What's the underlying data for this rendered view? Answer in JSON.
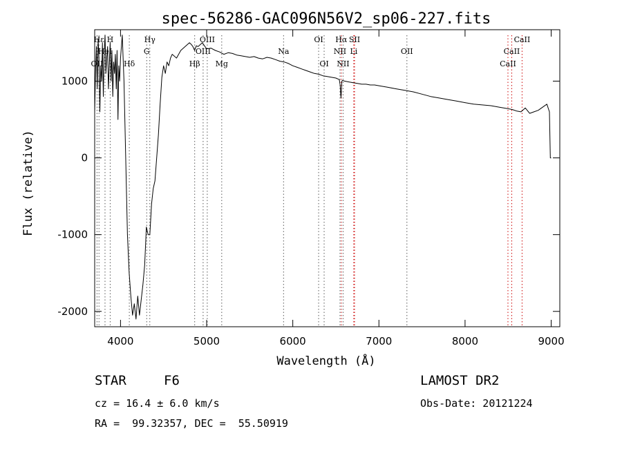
{
  "chart_data": {
    "type": "line",
    "title": "spec-56286-GAC096N56V2_sp06-227.fits",
    "xlabel": "Wavelength (Å)",
    "ylabel": "Flux (relative)",
    "xlim": [
      3700,
      9100
    ],
    "ylim": [
      -2200,
      1670
    ],
    "x_ticks": [
      4000,
      5000,
      6000,
      7000,
      8000,
      9000
    ],
    "y_ticks": [
      -2000,
      -1000,
      0,
      1000
    ],
    "line_color": "#000000",
    "marker_color_red": "#cc0000",
    "marker_color_black": "#555555",
    "series": [
      {
        "x": [
          3700,
          3710,
          3720,
          3730,
          3740,
          3750,
          3760,
          3770,
          3780,
          3790,
          3800,
          3810,
          3820,
          3830,
          3840,
          3850,
          3860,
          3870,
          3880,
          3890,
          3900,
          3910,
          3920,
          3930,
          3940,
          3950,
          3960,
          3970,
          3980,
          3990,
          4000,
          4020,
          4040,
          4060,
          4080,
          4100,
          4120,
          4140,
          4160,
          4180,
          4200,
          4220,
          4240,
          4260,
          4280,
          4300,
          4320,
          4340,
          4360,
          4380,
          4400,
          4420,
          4440,
          4460,
          4480,
          4500,
          4520,
          4540,
          4560,
          4580,
          4600,
          4650,
          4700,
          4750,
          4800,
          4820,
          4840,
          4860,
          4880,
          4900,
          4950,
          5000,
          5050,
          5100,
          5150,
          5200,
          5250,
          5300,
          5350,
          5400,
          5450,
          5500,
          5550,
          5600,
          5650,
          5700,
          5750,
          5800,
          5850,
          5900,
          5950,
          6000,
          6050,
          6100,
          6150,
          6200,
          6250,
          6300,
          6350,
          6400,
          6450,
          6500,
          6540,
          6550,
          6560,
          6565,
          6570,
          6580,
          6600,
          6650,
          6700,
          6750,
          6800,
          6850,
          6900,
          6950,
          7000,
          7100,
          7200,
          7300,
          7400,
          7500,
          7600,
          7700,
          7800,
          7900,
          8000,
          8100,
          8200,
          8300,
          8400,
          8500,
          8550,
          8600,
          8650,
          8700,
          8750,
          8800,
          8850,
          8900,
          8950,
          8980,
          8990,
          9000
        ],
        "y": [
          600,
          1100,
          1450,
          900,
          1550,
          1300,
          600,
          1200,
          1000,
          1500,
          800,
          1350,
          1600,
          1100,
          1300,
          1450,
          900,
          1200,
          1500,
          1000,
          1400,
          800,
          1250,
          1100,
          1350,
          900,
          1400,
          500,
          1200,
          1000,
          1300,
          1600,
          1000,
          0,
          -1000,
          -1500,
          -1800,
          -2050,
          -1900,
          -2100,
          -1800,
          -2050,
          -1850,
          -1650,
          -1400,
          -900,
          -1000,
          -1000,
          -600,
          -400,
          -300,
          0,
          300,
          700,
          1050,
          1200,
          1100,
          1250,
          1200,
          1300,
          1350,
          1300,
          1400,
          1450,
          1500,
          1480,
          1450,
          1400,
          1460,
          1450,
          1500,
          1420,
          1430,
          1400,
          1380,
          1350,
          1370,
          1360,
          1340,
          1330,
          1320,
          1310,
          1320,
          1300,
          1290,
          1310,
          1300,
          1280,
          1260,
          1250,
          1230,
          1200,
          1180,
          1160,
          1140,
          1120,
          1100,
          1090,
          1070,
          1060,
          1050,
          1040,
          1020,
          950,
          780,
          900,
          1000,
          1010,
          1000,
          990,
          980,
          970,
          960,
          960,
          950,
          950,
          940,
          920,
          900,
          880,
          860,
          830,
          800,
          780,
          760,
          740,
          720,
          700,
          690,
          680,
          660,
          640,
          630,
          610,
          600,
          650,
          580,
          600,
          620,
          660,
          700,
          600,
          0,
          0
        ]
      }
    ],
    "line_markers": [
      {
        "label": "OII",
        "x": 3727,
        "color": "black",
        "row": 3
      },
      {
        "label": "Hε",
        "x": 3750,
        "color": "black",
        "row": 1
      },
      {
        "label": "HeI",
        "x": 3820,
        "color": "black",
        "row": 2
      },
      {
        "label": "H",
        "x": 3880,
        "color": "black",
        "row": 1
      },
      {
        "label": "Hδ",
        "x": 4102,
        "color": "black",
        "row": 3
      },
      {
        "label": "Hγ",
        "x": 4340,
        "color": "black",
        "row": 1
      },
      {
        "label": "G",
        "x": 4304,
        "color": "black",
        "row": 2
      },
      {
        "label": "Hβ",
        "x": 4861,
        "color": "black",
        "row": 3
      },
      {
        "label": "OIII",
        "x": 5007,
        "color": "black",
        "row": 1
      },
      {
        "label": "OIII",
        "x": 4959,
        "color": "black",
        "row": 2
      },
      {
        "label": "Mg",
        "x": 5175,
        "color": "black",
        "row": 3
      },
      {
        "label": "Na",
        "x": 5893,
        "color": "black",
        "row": 2
      },
      {
        "label": "OI",
        "x": 6300,
        "color": "black",
        "row": 1
      },
      {
        "label": "OI",
        "x": 6364,
        "color": "black",
        "row": 3
      },
      {
        "label": "Hα",
        "x": 6563,
        "color": "red",
        "row": 1
      },
      {
        "label": "NII",
        "x": 6548,
        "color": "black",
        "row": 2
      },
      {
        "label": "NII",
        "x": 6584,
        "color": "black",
        "row": 3
      },
      {
        "label": "SII",
        "x": 6717,
        "color": "red",
        "row": 1
      },
      {
        "label": "Li",
        "x": 6708,
        "color": "red",
        "row": 2
      },
      {
        "label": "OII",
        "x": 7325,
        "color": "black",
        "row": 2
      },
      {
        "label": "CaII",
        "x": 8662,
        "color": "red",
        "row": 1
      },
      {
        "label": "CaII",
        "x": 8542,
        "color": "red",
        "row": 2
      },
      {
        "label": "CaII",
        "x": 8498,
        "color": "red",
        "row": 3
      }
    ]
  },
  "info": {
    "class": "STAR",
    "subclass": "F6",
    "survey": "LAMOST DR2",
    "cz": "cz = 16.4 ± 6.0 km/s",
    "obs_date": "Obs-Date: 20121224",
    "coords": "RA =  99.32357, DEC =  55.50919"
  }
}
